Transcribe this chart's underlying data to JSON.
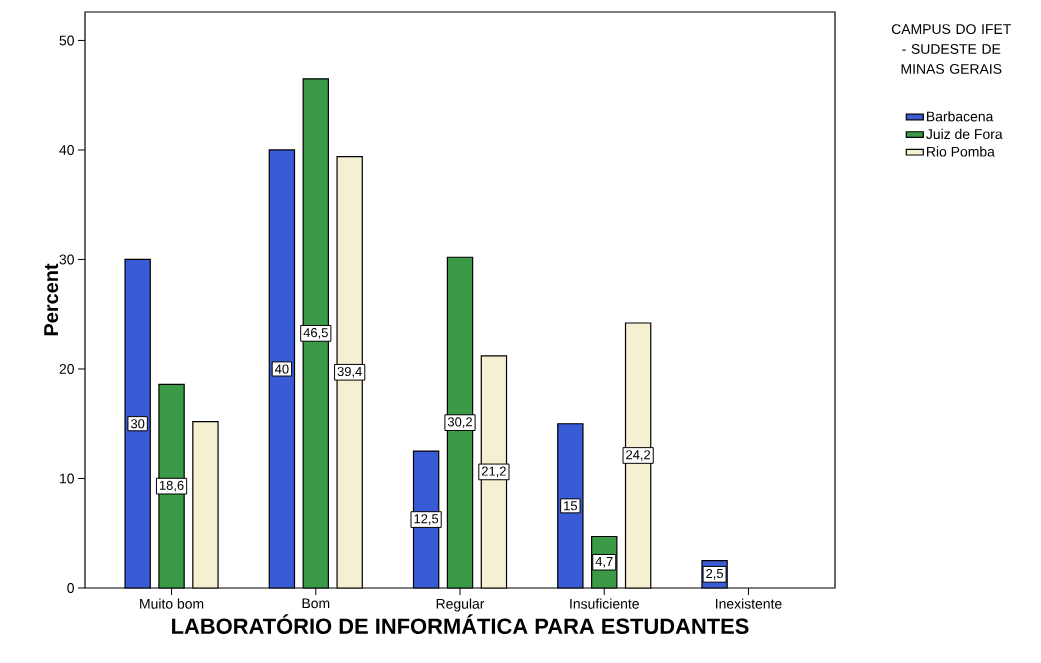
{
  "chart_data": {
    "type": "bar",
    "xlabel": "LABORATÓRIO DE INFORMÁTICA PARA ESTUDANTES",
    "ylabel": "Percent",
    "legend_title": "CAMPUS DO IFET - SUDESTE DE MINAS GERAIS",
    "categories": [
      "Muito bom",
      "Bom",
      "Regular",
      "Insuficiente",
      "Inexistente"
    ],
    "series": [
      {
        "name": "Barbacena",
        "color": "#3a5bd6",
        "values": [
          30,
          40,
          12.5,
          15,
          2.5
        ],
        "value_labels": [
          "30",
          "40",
          "12,5",
          "15",
          "2,5"
        ]
      },
      {
        "name": "Juiz de Fora",
        "color": "#3a9a47",
        "values": [
          18.6,
          46.5,
          30.2,
          4.7,
          null
        ],
        "value_labels": [
          "18,6",
          "46,5",
          "30,2",
          "4,7",
          null
        ]
      },
      {
        "name": "Rio Pomba",
        "color": "#f5f0d2",
        "values": [
          15.2,
          39.4,
          21.2,
          24.2,
          null
        ],
        "value_labels": [
          null,
          "39,4",
          "21,2",
          "24,2",
          null
        ]
      }
    ],
    "ylim": [
      0,
      52.6
    ],
    "yticks": [
      0,
      10,
      20,
      30,
      40,
      50
    ],
    "grid": false,
    "legend": "top right"
  }
}
